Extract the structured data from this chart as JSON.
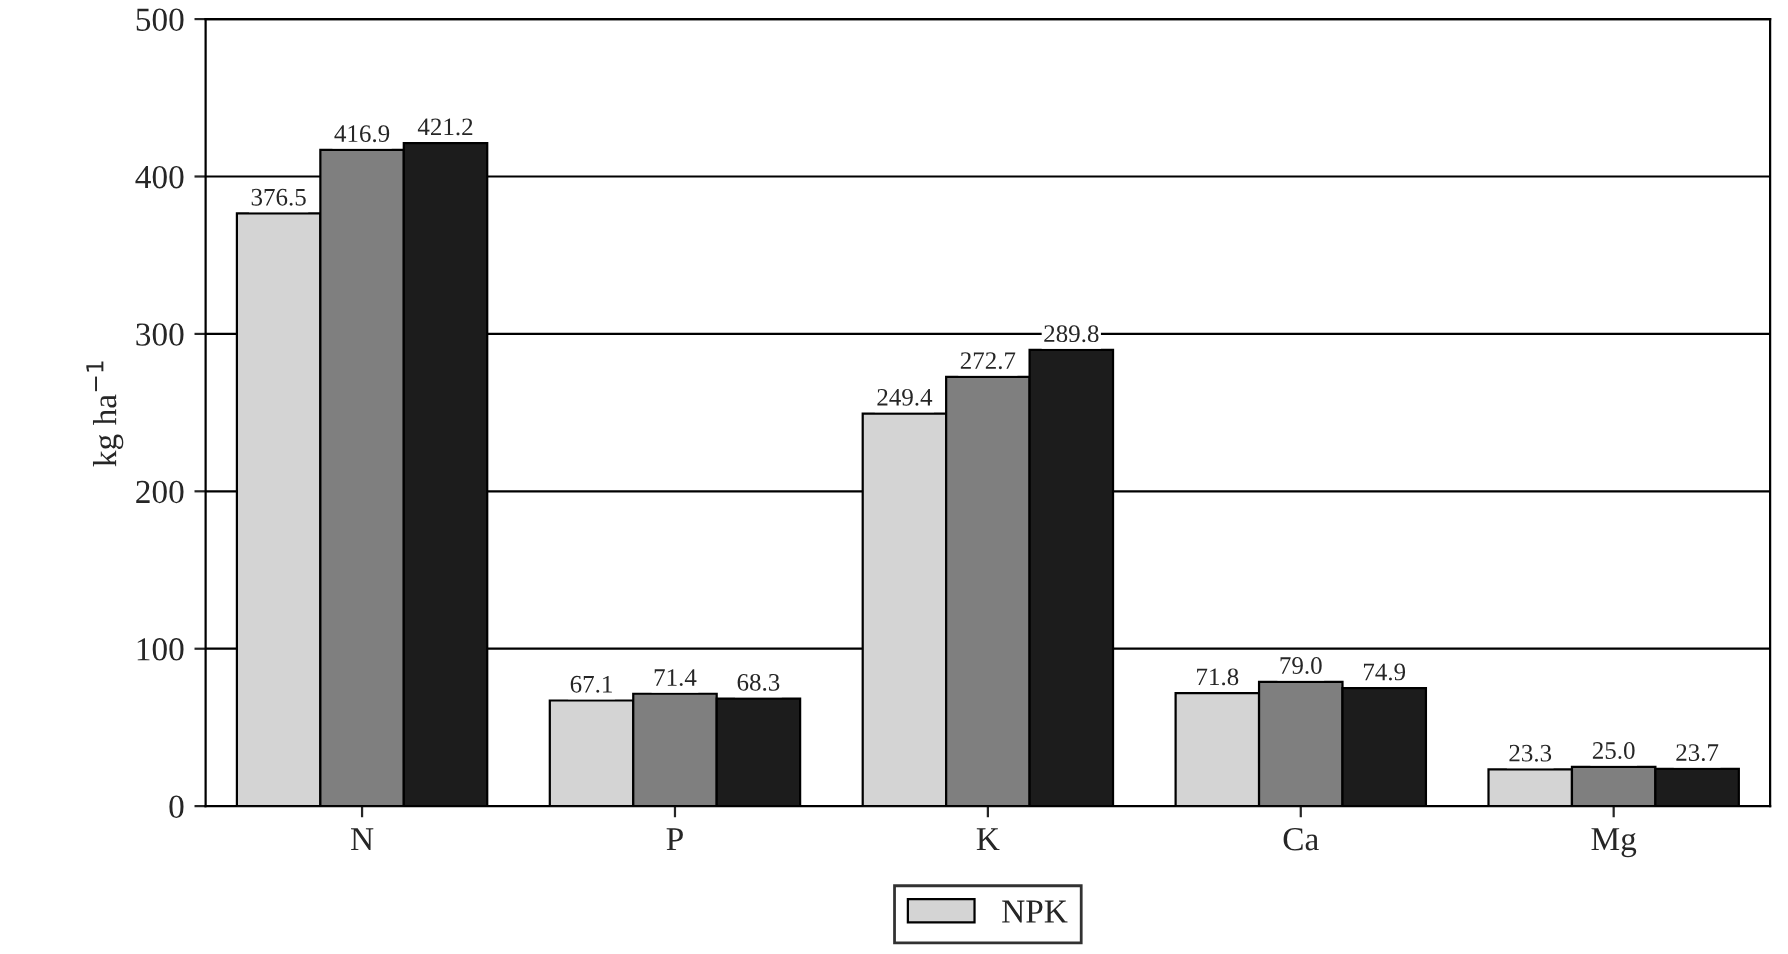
{
  "chart_data": {
    "type": "bar",
    "ylabel": "kg ha$^{−1}$",
    "categories": [
      "N",
      "P",
      "K",
      "Ca",
      "Mg"
    ],
    "series": [
      {
        "name": "NPK",
        "color": "#d4d4d4",
        "values": [
          376.5,
          67.1,
          249.4,
          71.8,
          23.3
        ],
        "value_labels": [
          "376.5",
          "67.1",
          "249.4",
          "71.8",
          "23.3"
        ]
      },
      {
        "color": "#7f7f7f",
        "values": [
          416.9,
          71.4,
          272.7,
          79.0,
          25.0
        ],
        "value_labels": [
          "416.9",
          "71.4",
          "272.7",
          "79.0",
          "25.0"
        ]
      },
      {
        "color": "#1c1c1c",
        "values": [
          421.2,
          68.3,
          289.8,
          74.9,
          23.7
        ],
        "value_labels": [
          "421.2",
          "68.3",
          "289.8",
          "74.9",
          "23.7"
        ]
      }
    ],
    "ylim": [
      0,
      500
    ],
    "yticks": [
      0,
      100,
      200,
      300,
      400,
      500
    ],
    "grid": "y",
    "legend": "bottom"
  }
}
